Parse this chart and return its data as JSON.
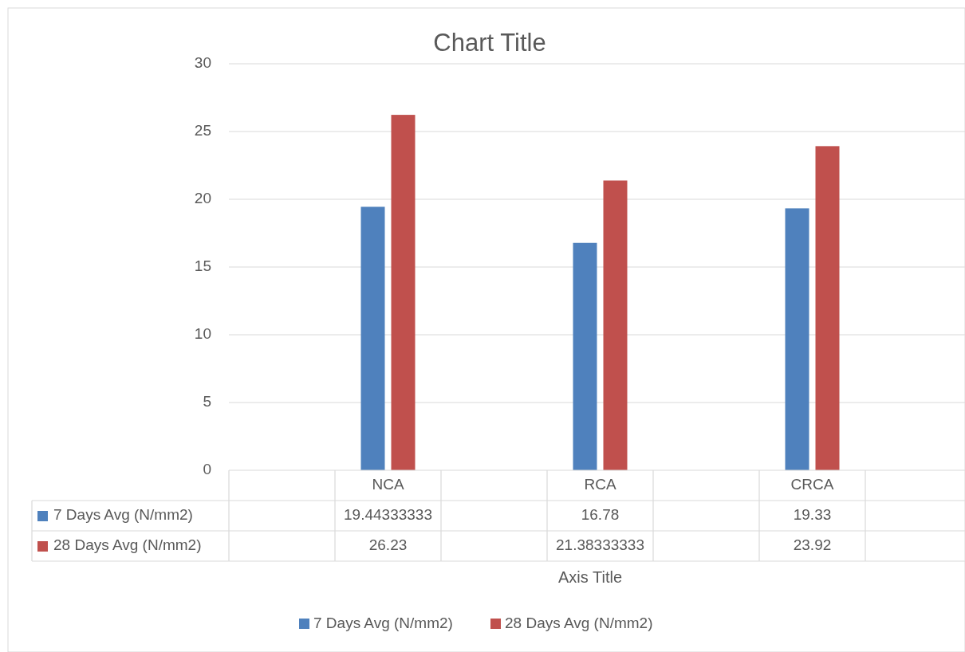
{
  "chart_data": {
    "type": "bar",
    "title": "Chart Title",
    "xlabel": "Axis Title",
    "categories": [
      null,
      "NCA",
      null,
      "RCA",
      null,
      "CRCA",
      null
    ],
    "series": [
      {
        "name": "7 Days Avg (N/mm2)",
        "color": "#4f81bd",
        "values": [
          null,
          19.44333333,
          null,
          16.78,
          null,
          19.33,
          null
        ]
      },
      {
        "name": "28 Days Avg (N/mm2)",
        "color": "#c0504d",
        "values": [
          null,
          26.23,
          null,
          21.38333333,
          null,
          23.92,
          null
        ]
      }
    ],
    "ylim": [
      0,
      30
    ],
    "yticks": [
      0,
      5,
      10,
      15,
      20,
      25,
      30
    ],
    "grid": true,
    "legend": "bottom",
    "data_labels": true
  }
}
